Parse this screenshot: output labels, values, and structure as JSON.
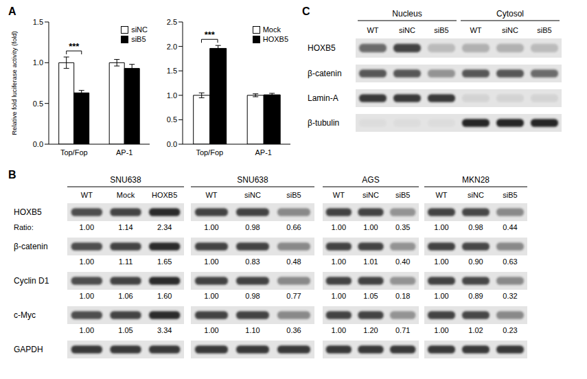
{
  "panel_labels": [
    "A",
    "B",
    "C"
  ],
  "chart_data": [
    {
      "type": "bar",
      "ylabel": "Relative fold luciferase activity (fold)",
      "categories": [
        "Top/Fop",
        "AP-1"
      ],
      "series": [
        {
          "name": "siNC",
          "color": "#ffffff",
          "values": [
            1.0,
            1.0
          ],
          "errors": [
            0.07,
            0.04
          ]
        },
        {
          "name": "siB5",
          "color": "#000000",
          "values": [
            0.63,
            0.93
          ],
          "errors": [
            0.03,
            0.05
          ]
        }
      ],
      "ylim": [
        0,
        1.5
      ],
      "yticks": [
        {
          "value": 0,
          "label": "0.0"
        },
        0.5,
        {
          "value": 1,
          "label": "1.0"
        },
        1.5
      ],
      "grid": false,
      "legend": "upper right",
      "annotations": [
        {
          "text": "***",
          "category": "Top/Fop"
        }
      ]
    },
    {
      "type": "bar",
      "categories": [
        "Top/Fop",
        "AP-1"
      ],
      "series": [
        {
          "name": "Mock",
          "color": "#ffffff",
          "values": [
            1.0,
            1.0
          ],
          "errors": [
            0.05,
            0.03
          ]
        },
        {
          "name": "HOXB5",
          "color": "#000000",
          "values": [
            1.96,
            1.01
          ],
          "errors": [
            0.06,
            0.03
          ]
        }
      ],
      "ylim": [
        0,
        2.5
      ],
      "yticks": [
        {
          "value": 0,
          "label": "0.0"
        },
        0.5,
        {
          "value": 1,
          "label": "1.0"
        },
        1.5,
        {
          "value": 2,
          "label": "2.0"
        },
        2.5
      ],
      "grid": false,
      "legend": "upper right",
      "annotations": [
        {
          "text": "***",
          "category": "Top/Fop"
        }
      ]
    }
  ],
  "blot_B": {
    "groups": [
      {
        "cell_line": "SNU638",
        "lanes": [
          "WT",
          "Mock",
          "HOXB5"
        ]
      },
      {
        "cell_line": "SNU638",
        "lanes": [
          "WT",
          "siNC",
          "siB5"
        ]
      },
      {
        "cell_line": "AGS",
        "lanes": [
          "WT",
          "siNC",
          "siB5"
        ]
      },
      {
        "cell_line": "MKN28",
        "lanes": [
          "WT",
          "siNC",
          "siB5"
        ]
      }
    ],
    "ratio_label": "Ratio:",
    "rows": [
      {
        "label": "HOXB5",
        "ratios": [
          [
            "1.00",
            "1.14",
            "2.34"
          ],
          [
            "1.00",
            "0.98",
            "0.66"
          ],
          [
            "1.00",
            "1.00",
            "0.35"
          ],
          [
            "1.00",
            "0.98",
            "0.44"
          ]
        ]
      },
      {
        "label": "β-catenin",
        "ratios": [
          [
            "1.00",
            "1.11",
            "1.65"
          ],
          [
            "1.00",
            "0.83",
            "0.48"
          ],
          [
            "1.00",
            "1.01",
            "0.40"
          ],
          [
            "1.00",
            "0.90",
            "0.63"
          ]
        ]
      },
      {
        "label": "Cyclin D1",
        "ratios": [
          [
            "1.00",
            "1.06",
            "1.60"
          ],
          [
            "1.00",
            "0.98",
            "0.77"
          ],
          [
            "1.00",
            "1.05",
            "0.18"
          ],
          [
            "1.00",
            "0.89",
            "0.32"
          ]
        ]
      },
      {
        "label": "c-Myc",
        "ratios": [
          [
            "1.00",
            "1.05",
            "3.34"
          ],
          [
            "1.00",
            "1.10",
            "0.36"
          ],
          [
            "1.00",
            "1.20",
            "0.71"
          ],
          [
            "1.00",
            "1.02",
            "0.23"
          ]
        ]
      },
      {
        "label": "GAPDH"
      }
    ]
  },
  "blot_C": {
    "compartments": [
      {
        "name": "Nucleus",
        "lanes": [
          "WT",
          "siNC",
          "siB5"
        ]
      },
      {
        "name": "Cytosol",
        "lanes": [
          "WT",
          "siNC",
          "siB5"
        ]
      }
    ],
    "rows": [
      "HOXB5",
      "β-catenin",
      "Lamin-A",
      "β-tubulin"
    ]
  }
}
